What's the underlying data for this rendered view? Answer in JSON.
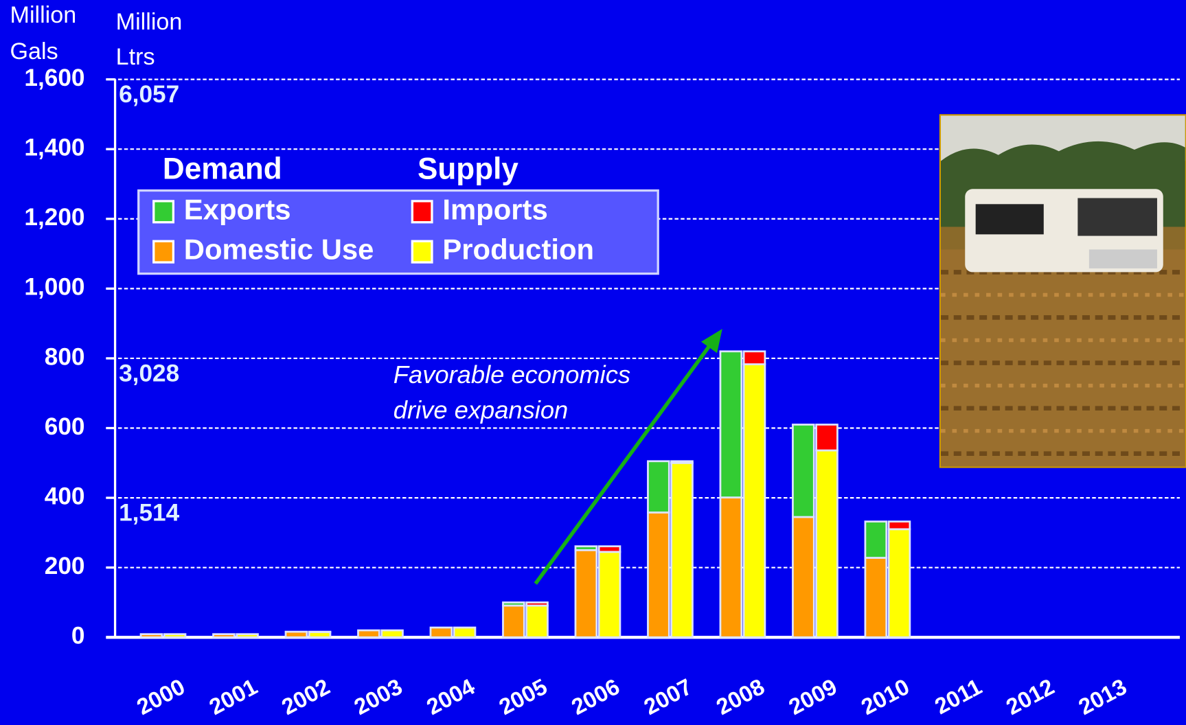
{
  "chart_data": {
    "type": "bar",
    "ylabel": [
      "Million",
      "Gals"
    ],
    "y2label": [
      "Million",
      "Ltrs"
    ],
    "categories": [
      "2000",
      "2001",
      "2002",
      "2003",
      "2004",
      "2005",
      "2006",
      "2007",
      "2008",
      "2009",
      "2010",
      "2011",
      "2012",
      "2013"
    ],
    "groups": [
      {
        "name": "Demand",
        "series": [
          {
            "name": "Domestic Use",
            "color": "#ff9900",
            "values": [
              9,
              9,
              16,
              20,
              28,
              91,
              250,
              358,
              401,
              345,
              228,
              null,
              null,
              null
            ]
          },
          {
            "name": "Exports",
            "color": "#33cc33",
            "values": [
              0,
              0,
              0,
              0,
              0,
              9,
              11,
              147,
              419,
              265,
              104,
              null,
              null,
              null
            ]
          }
        ]
      },
      {
        "name": "Supply",
        "series": [
          {
            "name": "Production",
            "color": "#ffff00",
            "values": [
              9,
              9,
              15,
              20,
              28,
              91,
              245,
              500,
              783,
              536,
              310,
              null,
              null,
              null
            ]
          },
          {
            "name": "Imports",
            "color": "#ff0000",
            "values": [
              0,
              0,
              1,
              0,
              0,
              9,
              16,
              5,
              37,
              74,
              22,
              null,
              null,
              null
            ]
          }
        ]
      }
    ],
    "ylim": [
      0,
      1600
    ],
    "yticks": [
      0,
      200,
      400,
      600,
      800,
      {
        "value": 1000,
        "label": "1,000"
      },
      {
        "value": 1200,
        "label": "1,200"
      },
      {
        "value": 1400,
        "label": "1,400"
      },
      {
        "value": 1600,
        "label": "1,600"
      }
    ],
    "y2lim": [
      0,
      6057
    ],
    "y2ticks": [
      {
        "value": 1514,
        "label": "1,514"
      },
      {
        "value": 3028,
        "label": "3,028"
      },
      {
        "value": 6057,
        "label": "6,057"
      }
    ],
    "grid": true,
    "annotation": [
      "Favorable economics",
      "drive expansion"
    ]
  }
}
